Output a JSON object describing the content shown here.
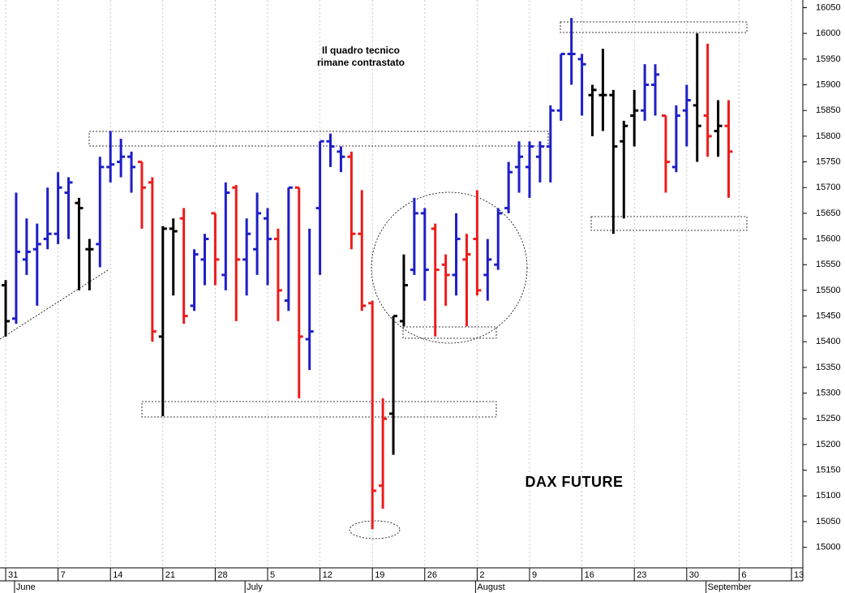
{
  "chart_data": {
    "type": "ohlc",
    "title": "DAX FUTURE",
    "annotations": [
      "Il quadro tecnico",
      "rimane contrastato"
    ],
    "categories": [
      "31",
      null,
      null,
      null,
      null,
      "7",
      null,
      null,
      null,
      null,
      "14",
      null,
      null,
      null,
      null,
      "21",
      null,
      null,
      null,
      null,
      "28",
      null,
      null,
      null,
      null,
      "5",
      null,
      null,
      null,
      null,
      "12",
      null,
      null,
      null,
      null,
      "19",
      null,
      null,
      null,
      null,
      "26",
      null,
      null,
      null,
      null,
      "2",
      null,
      null,
      null,
      null,
      "9",
      null,
      null,
      null,
      null,
      "16",
      null,
      null,
      null,
      null,
      "23",
      null,
      null,
      null,
      null,
      "30",
      null,
      null,
      null,
      null,
      "6",
      null,
      null,
      null,
      null,
      "13"
    ],
    "months": [
      null,
      "June",
      null,
      null,
      null,
      null,
      null,
      null,
      null,
      null,
      null,
      null,
      null,
      null,
      null,
      null,
      null,
      null,
      null,
      null,
      null,
      null,
      null,
      "July",
      null,
      null,
      null,
      null,
      null,
      null,
      null,
      null,
      null,
      null,
      null,
      null,
      null,
      null,
      null,
      null,
      null,
      null,
      null,
      null,
      null,
      "August",
      null,
      null,
      null,
      null,
      null,
      null,
      null,
      null,
      null,
      null,
      null,
      null,
      null,
      null,
      null,
      null,
      null,
      null,
      null,
      null,
      null,
      "September",
      null,
      null,
      null,
      null,
      null,
      null,
      null,
      null
    ],
    "open": [
      15510,
      15445,
      15560,
      15580,
      15600,
      15610,
      15690,
      15670,
      15580,
      15590,
      15740,
      15750,
      15760,
      15750,
      15710,
      15410,
      15620,
      15640,
      15470,
      15560,
      15650,
      15530,
      15700,
      15560,
      15580,
      15640,
      15600,
      15480,
      15700,
      15405,
      15660,
      15790,
      15770,
      15760,
      15610,
      15475,
      15120,
      15260,
      15440,
      15540,
      15650,
      15620,
      15550,
      15530,
      15560,
      15600,
      15530,
      15550,
      15660,
      15740,
      15740,
      15760,
      15780,
      15850,
      15960,
      15950,
      15880,
      15880,
      15880,
      15790,
      15840,
      15850,
      15900,
      15840,
      15740,
      15850,
      15860,
      15840,
      15810,
      15820,
      null,
      null,
      null,
      null,
      null,
      null
    ],
    "high": [
      15520,
      15690,
      15640,
      15630,
      15700,
      15730,
      15720,
      15680,
      15600,
      15760,
      15810,
      15795,
      15770,
      15750,
      15720,
      15625,
      15640,
      15660,
      15580,
      15610,
      15650,
      15710,
      15705,
      15640,
      15690,
      15660,
      15620,
      15700,
      15700,
      15620,
      15790,
      15805,
      15780,
      15770,
      15695,
      15480,
      15290,
      15450,
      15570,
      15680,
      15660,
      15630,
      15570,
      15650,
      15610,
      15695,
      15600,
      15660,
      15750,
      15790,
      15790,
      15790,
      15860,
      15960,
      16030,
      15960,
      15900,
      15970,
      15890,
      15830,
      15890,
      15940,
      15940,
      15840,
      15860,
      15900,
      16000,
      15980,
      15870,
      15870,
      null,
      null,
      null,
      null,
      null,
      null
    ],
    "low": [
      15410,
      15435,
      15530,
      15470,
      15580,
      15590,
      15600,
      15500,
      15500,
      15545,
      15710,
      15720,
      15690,
      15620,
      15400,
      15255,
      15490,
      15435,
      15460,
      15510,
      15510,
      15500,
      15440,
      15490,
      15530,
      15510,
      15440,
      15460,
      15290,
      15345,
      15530,
      15740,
      15730,
      15580,
      15460,
      15035,
      15075,
      15180,
      15430,
      15530,
      15480,
      15410,
      15470,
      15490,
      15430,
      15490,
      15480,
      15540,
      15650,
      15690,
      15680,
      15710,
      15710,
      15830,
      15900,
      15840,
      15800,
      15810,
      15610,
      15640,
      15780,
      15830,
      15840,
      15690,
      15730,
      15780,
      15750,
      15760,
      15760,
      15680,
      null,
      null,
      null,
      null,
      null,
      null
    ],
    "close": [
      15440,
      15575,
      15575,
      15590,
      15610,
      15700,
      15710,
      15660,
      15580,
      15740,
      15745,
      15760,
      15740,
      15700,
      15420,
      15620,
      15615,
      15450,
      15570,
      15600,
      15560,
      15690,
      15560,
      15610,
      15650,
      15600,
      15500,
      15700,
      15410,
      15420,
      15790,
      15780,
      15760,
      15610,
      15470,
      15110,
      15250,
      15450,
      15510,
      15650,
      15540,
      15540,
      15530,
      15600,
      15570,
      15500,
      15560,
      15650,
      15730,
      15760,
      15780,
      15780,
      15850,
      15960,
      15960,
      15940,
      15890,
      15880,
      15780,
      15820,
      15850,
      15900,
      15920,
      15750,
      15840,
      15870,
      15820,
      15800,
      15820,
      15770,
      null,
      null,
      null,
      null,
      null,
      null
    ],
    "colors": [
      "#000000",
      "#1e1ec8",
      "#1e1ec8",
      "#1e1ec8",
      "#1e1ec8",
      "#1e1ec8",
      "#1e1ec8",
      "#000000",
      "#000000",
      "#1e1ec8",
      "#1e1ec8",
      "#1e1ec8",
      "#1e1ec8",
      "#ec1c1c",
      "#ec1c1c",
      "#000000",
      "#000000",
      "#ec1c1c",
      "#1e1ec8",
      "#1e1ec8",
      "#ec1c1c",
      "#1e1ec8",
      "#ec1c1c",
      "#1e1ec8",
      "#1e1ec8",
      "#1e1ec8",
      "#ec1c1c",
      "#1e1ec8",
      "#ec1c1c",
      "#1e1ec8",
      "#1e1ec8",
      "#1e1ec8",
      "#1e1ec8",
      "#ec1c1c",
      "#ec1c1c",
      "#ec1c1c",
      "#ec1c1c",
      "#000000",
      "#000000",
      "#1e1ec8",
      "#1e1ec8",
      "#ec1c1c",
      "#ec1c1c",
      "#1e1ec8",
      "#ec1c1c",
      "#ec1c1c",
      "#1e1ec8",
      "#1e1ec8",
      "#1e1ec8",
      "#1e1ec8",
      "#1e1ec8",
      "#1e1ec8",
      "#1e1ec8",
      "#1e1ec8",
      "#1e1ec8",
      "#1e1ec8",
      "#000000",
      "#000000",
      "#000000",
      "#000000",
      "#000000",
      "#1e1ec8",
      "#1e1ec8",
      "#ec1c1c",
      "#1e1ec8",
      "#1e1ec8",
      "#000000",
      "#ec1c1c",
      "#000000",
      "#ec1c1c",
      null,
      null,
      null,
      null,
      null,
      null
    ],
    "ylim": [
      14960,
      16065
    ],
    "yticks": [
      15000,
      15050,
      15100,
      15150,
      15200,
      15250,
      15300,
      15350,
      15400,
      15450,
      15500,
      15550,
      15600,
      15650,
      15700,
      15750,
      15800,
      15850,
      15900,
      15950,
      16000,
      16050
    ],
    "grid": true
  }
}
